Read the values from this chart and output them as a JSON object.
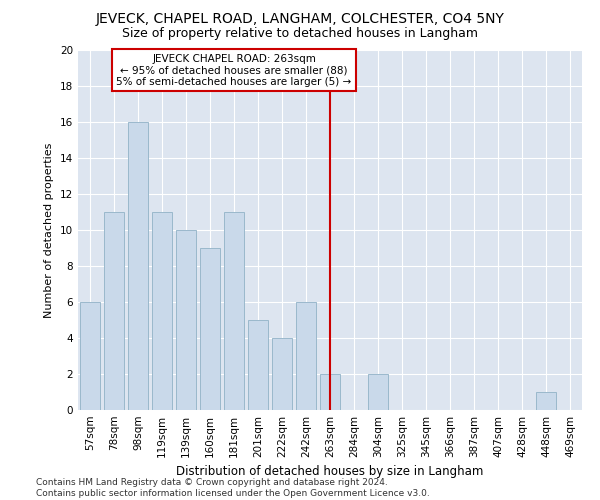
{
  "title": "JEVECK, CHAPEL ROAD, LANGHAM, COLCHESTER, CO4 5NY",
  "subtitle": "Size of property relative to detached houses in Langham",
  "xlabel": "Distribution of detached houses by size in Langham",
  "ylabel": "Number of detached properties",
  "categories": [
    "57sqm",
    "78sqm",
    "98sqm",
    "119sqm",
    "139sqm",
    "160sqm",
    "181sqm",
    "201sqm",
    "222sqm",
    "242sqm",
    "263sqm",
    "284sqm",
    "304sqm",
    "325sqm",
    "345sqm",
    "366sqm",
    "387sqm",
    "407sqm",
    "428sqm",
    "448sqm",
    "469sqm"
  ],
  "values": [
    6,
    11,
    16,
    11,
    10,
    9,
    11,
    5,
    4,
    6,
    2,
    0,
    2,
    0,
    0,
    0,
    0,
    0,
    0,
    1,
    0
  ],
  "bar_color": "#c9d9ea",
  "bar_edge_color": "#9ab8cc",
  "vline_x_index": 10,
  "vline_color": "#cc0000",
  "annotation_line1": "JEVECK CHAPEL ROAD: 263sqm",
  "annotation_line2": "← 95% of detached houses are smaller (88)",
  "annotation_line3": "5% of semi-detached houses are larger (5) →",
  "annotation_box_edgecolor": "#cc0000",
  "ylim": [
    0,
    20
  ],
  "yticks": [
    0,
    2,
    4,
    6,
    8,
    10,
    12,
    14,
    16,
    18,
    20
  ],
  "grid_color": "#ffffff",
  "background_color": "#dde5f0",
  "footer_line1": "Contains HM Land Registry data © Crown copyright and database right 2024.",
  "footer_line2": "Contains public sector information licensed under the Open Government Licence v3.0.",
  "title_fontsize": 10,
  "subtitle_fontsize": 9,
  "xlabel_fontsize": 8.5,
  "ylabel_fontsize": 8,
  "tick_fontsize": 7.5,
  "annotation_fontsize": 7.5,
  "footer_fontsize": 6.5
}
